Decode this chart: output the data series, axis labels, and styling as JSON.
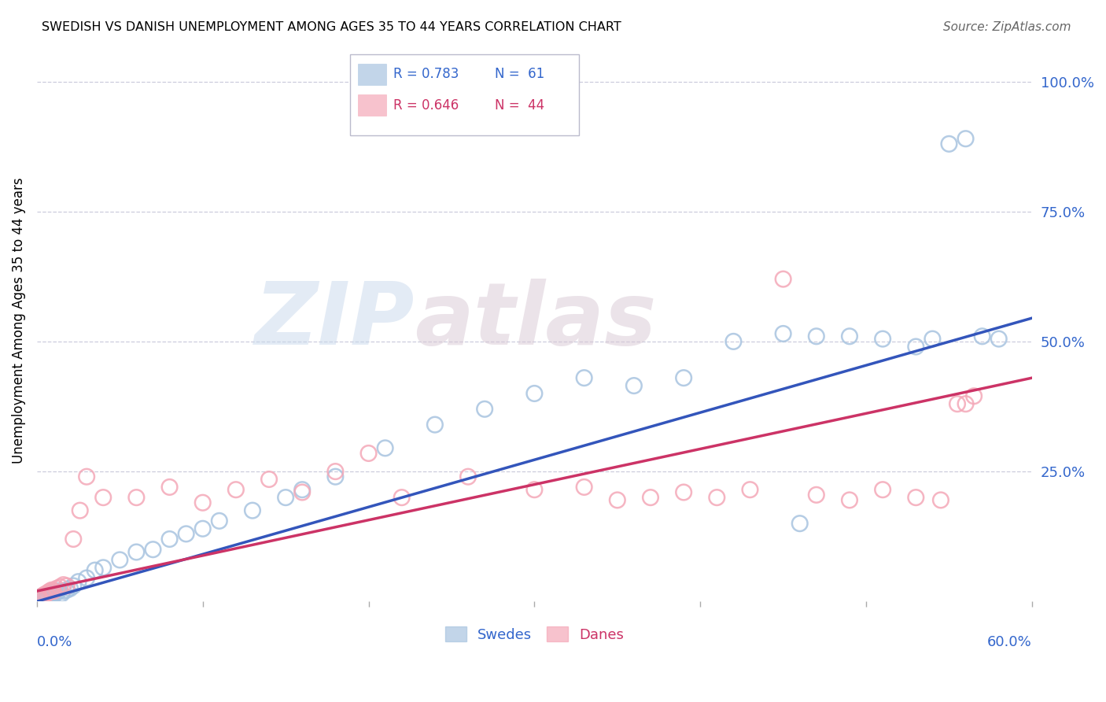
{
  "title": "SWEDISH VS DANISH UNEMPLOYMENT AMONG AGES 35 TO 44 YEARS CORRELATION CHART",
  "source": "Source: ZipAtlas.com",
  "ylabel": "Unemployment Among Ages 35 to 44 years",
  "ytick_labels": [
    "100.0%",
    "75.0%",
    "50.0%",
    "25.0%"
  ],
  "ytick_values": [
    1.0,
    0.75,
    0.5,
    0.25
  ],
  "xlim": [
    0.0,
    0.6
  ],
  "ylim": [
    0.0,
    1.08
  ],
  "watermark_text": "ZIP",
  "watermark_text2": "atlas",
  "legend_blue_r": "R = 0.783",
  "legend_blue_n": "N =  61",
  "legend_pink_r": "R = 0.646",
  "legend_pink_n": "N =  44",
  "legend_label_blue": "Swedes",
  "legend_label_pink": "Danes",
  "blue_scatter_color": "#A8C4E0",
  "pink_scatter_color": "#F4A8B8",
  "blue_line_color": "#3355BB",
  "pink_line_color": "#CC3366",
  "blue_line_x": [
    0.0,
    0.6
  ],
  "blue_line_y": [
    0.0,
    0.545
  ],
  "pink_line_x": [
    0.0,
    0.6
  ],
  "pink_line_y": [
    0.02,
    0.43
  ],
  "swedes_x": [
    0.001,
    0.001,
    0.002,
    0.002,
    0.002,
    0.003,
    0.003,
    0.003,
    0.004,
    0.004,
    0.005,
    0.005,
    0.006,
    0.006,
    0.007,
    0.008,
    0.009,
    0.01,
    0.01,
    0.011,
    0.012,
    0.013,
    0.015,
    0.016,
    0.018,
    0.02,
    0.022,
    0.025,
    0.03,
    0.035,
    0.04,
    0.05,
    0.06,
    0.07,
    0.08,
    0.09,
    0.1,
    0.11,
    0.13,
    0.15,
    0.16,
    0.18,
    0.21,
    0.24,
    0.27,
    0.3,
    0.33,
    0.36,
    0.39,
    0.42,
    0.45,
    0.46,
    0.47,
    0.49,
    0.51,
    0.53,
    0.54,
    0.55,
    0.56,
    0.57,
    0.58
  ],
  "swedes_y": [
    0.003,
    0.005,
    0.004,
    0.006,
    0.008,
    0.005,
    0.007,
    0.01,
    0.006,
    0.009,
    0.008,
    0.012,
    0.01,
    0.013,
    0.012,
    0.015,
    0.014,
    0.013,
    0.016,
    0.015,
    0.018,
    0.02,
    0.015,
    0.02,
    0.022,
    0.025,
    0.03,
    0.038,
    0.045,
    0.06,
    0.065,
    0.08,
    0.095,
    0.1,
    0.12,
    0.13,
    0.14,
    0.155,
    0.175,
    0.2,
    0.215,
    0.24,
    0.295,
    0.34,
    0.37,
    0.4,
    0.43,
    0.415,
    0.43,
    0.5,
    0.515,
    0.15,
    0.51,
    0.51,
    0.505,
    0.49,
    0.505,
    0.88,
    0.89,
    0.51,
    0.505
  ],
  "danes_x": [
    0.001,
    0.002,
    0.003,
    0.004,
    0.005,
    0.006,
    0.007,
    0.008,
    0.009,
    0.01,
    0.012,
    0.014,
    0.016,
    0.018,
    0.022,
    0.026,
    0.03,
    0.04,
    0.06,
    0.08,
    0.1,
    0.12,
    0.14,
    0.16,
    0.18,
    0.2,
    0.22,
    0.26,
    0.3,
    0.33,
    0.35,
    0.37,
    0.39,
    0.41,
    0.43,
    0.45,
    0.47,
    0.49,
    0.51,
    0.53,
    0.545,
    0.555,
    0.56,
    0.565
  ],
  "danes_y": [
    0.005,
    0.007,
    0.01,
    0.012,
    0.014,
    0.015,
    0.018,
    0.02,
    0.022,
    0.02,
    0.025,
    0.028,
    0.032,
    0.03,
    0.12,
    0.175,
    0.24,
    0.2,
    0.2,
    0.22,
    0.19,
    0.215,
    0.235,
    0.21,
    0.25,
    0.285,
    0.2,
    0.24,
    0.215,
    0.22,
    0.195,
    0.2,
    0.21,
    0.2,
    0.215,
    0.62,
    0.205,
    0.195,
    0.215,
    0.2,
    0.195,
    0.38,
    0.38,
    0.395
  ]
}
